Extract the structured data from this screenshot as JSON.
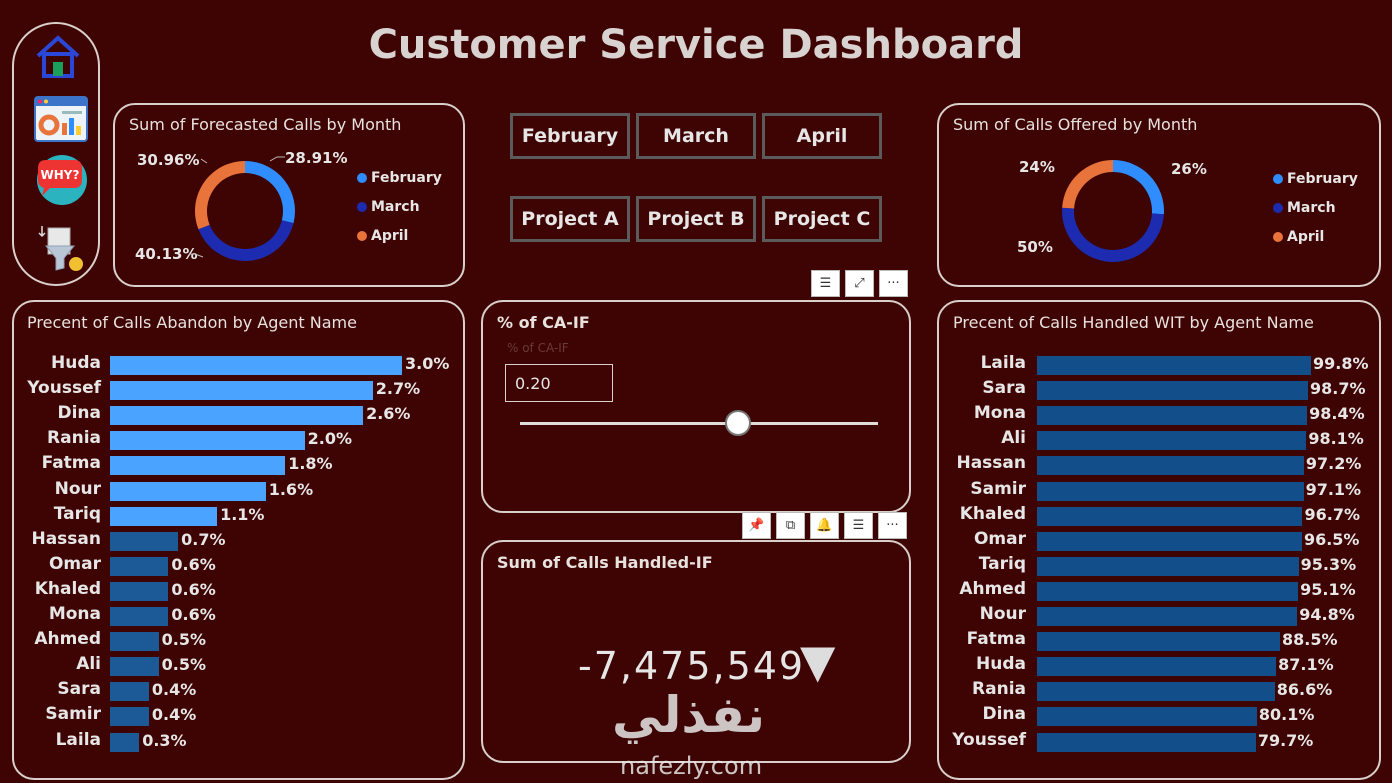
{
  "title": "Customer Service Dashboard",
  "nav": [
    {
      "name": "home-icon"
    },
    {
      "name": "dashboard-icon"
    },
    {
      "name": "why-icon",
      "text": "WHY?"
    },
    {
      "name": "filter-icon"
    }
  ],
  "forecast_panel": {
    "title": "Sum of Forecasted Calls by Month",
    "labels": {
      "february": "28.91%",
      "march": "40.13%",
      "april": "30.96%"
    },
    "legend": [
      "February",
      "March",
      "April"
    ]
  },
  "offered_panel": {
    "title": "Sum of Calls Offered by Month",
    "labels": {
      "february": "26%",
      "march": "50%",
      "april": "24%"
    },
    "legend": [
      "February",
      "March",
      "April"
    ]
  },
  "slicers": {
    "months": [
      "February",
      "March",
      "April"
    ],
    "projects": [
      "Project A",
      "Project B",
      "Project C"
    ]
  },
  "colors": {
    "february": "#2f8dff",
    "march": "#1c2bb0",
    "april": "#e8743b",
    "abandon_high": "#4aa3ff",
    "abandon_low": "#1b5a96",
    "handled": "#124e8a"
  },
  "ca_if": {
    "title": "% of CA-IF",
    "sublabel": "% of CA-IF",
    "value": "0.20",
    "slider_fraction": 0.61
  },
  "handled_if": {
    "title": "Sum of Calls Handled-IF",
    "value": "-7,475,549",
    "trend": "▼"
  },
  "watermark": {
    "arabic": "نفذلي",
    "latin": "nafezly.com"
  },
  "chart_data": [
    {
      "type": "bar",
      "title": "Precent of Calls Abandon by Agent Name",
      "categories": [
        "Huda",
        "Youssef",
        "Dina",
        "Rania",
        "Fatma",
        "Nour",
        "Tariq",
        "Hassan",
        "Omar",
        "Khaled",
        "Mona",
        "Ahmed",
        "Ali",
        "Sara",
        "Samir",
        "Laila"
      ],
      "values": [
        3.0,
        2.7,
        2.6,
        2.0,
        1.8,
        1.6,
        1.1,
        0.7,
        0.6,
        0.6,
        0.6,
        0.5,
        0.5,
        0.4,
        0.4,
        0.3
      ],
      "value_labels": [
        "3.0%",
        "2.7%",
        "2.6%",
        "2.0%",
        "1.8%",
        "1.6%",
        "1.1%",
        "0.7%",
        "0.6%",
        "0.6%",
        "0.6%",
        "0.5%",
        "0.5%",
        "0.4%",
        "0.4%",
        "0.3%"
      ],
      "highlight_count": 7,
      "xlim": [
        0,
        3.0
      ]
    },
    {
      "type": "bar",
      "title": "Precent of Calls Handled WIT by Agent Name",
      "categories": [
        "Laila",
        "Sara",
        "Mona",
        "Ali",
        "Hassan",
        "Samir",
        "Khaled",
        "Omar",
        "Tariq",
        "Ahmed",
        "Nour",
        "Fatma",
        "Huda",
        "Rania",
        "Dina",
        "Youssef"
      ],
      "values": [
        99.8,
        98.7,
        98.4,
        98.1,
        97.2,
        97.1,
        96.7,
        96.5,
        95.3,
        95.1,
        94.8,
        88.5,
        87.1,
        86.6,
        80.1,
        79.7
      ],
      "value_labels": [
        "99.8%",
        "98.7%",
        "98.4%",
        "98.1%",
        "97.2%",
        "97.1%",
        "96.7%",
        "96.5%",
        "95.3%",
        "95.1%",
        "94.8%",
        "88.5%",
        "87.1%",
        "86.6%",
        "80.1%",
        "79.7%"
      ],
      "xlim": [
        0,
        99.8
      ]
    },
    {
      "type": "pie",
      "title": "Sum of Forecasted Calls by Month",
      "categories": [
        "February",
        "March",
        "April"
      ],
      "values": [
        28.91,
        40.13,
        30.96
      ]
    },
    {
      "type": "pie",
      "title": "Sum of Calls Offered by Month",
      "categories": [
        "February",
        "March",
        "April"
      ],
      "values": [
        26,
        50,
        24
      ]
    }
  ]
}
